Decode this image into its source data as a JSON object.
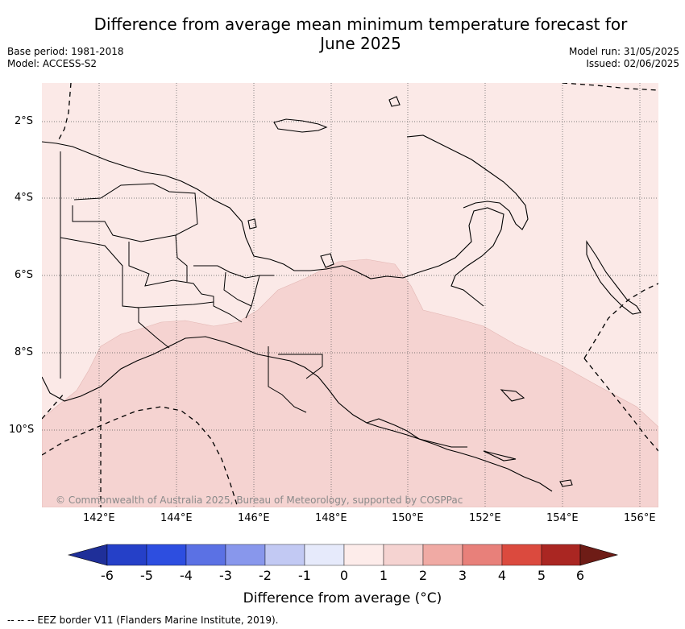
{
  "header": {
    "title_line1": "Difference from average mean minimum temperature forecast for",
    "title_line2": "June 2025",
    "base_period": "Base period: 1981-2018",
    "model": "Model: ACCESS-S2",
    "model_run": "Model run: 31/05/2025",
    "issued": "Issued: 02/06/2025"
  },
  "map": {
    "lat_labels": [
      "2°S",
      "4°S",
      "6°S",
      "8°S",
      "10°S"
    ],
    "lon_labels": [
      "142°E",
      "144°E",
      "146°E",
      "148°E",
      "150°E",
      "152°E",
      "154°E",
      "156°E"
    ],
    "copyright": "© Commonwealth of Australia 2025, Bureau of Meteorology, supported by COSPPac",
    "region_colors": {
      "light": "#fbe9e7",
      "medium": "#f5d3d1"
    }
  },
  "colorbar": {
    "label": "Difference from average (°C)",
    "ticks": [
      "-6",
      "-5",
      "-4",
      "-3",
      "-2",
      "-1",
      "0",
      "1",
      "2",
      "3",
      "4",
      "5",
      "6"
    ],
    "colors": [
      "#1f2f99",
      "#2540c8",
      "#2d4ee0",
      "#5b71e4",
      "#8897ec",
      "#c2c9f3",
      "#e6eafb",
      "#fdecea",
      "#f5d3d1",
      "#f0aaa4",
      "#e8807a",
      "#db4a3e",
      "#aa2622",
      "#6e1c16"
    ]
  },
  "footer": {
    "legend_text": "--  --  -- EEZ border V11 (Flanders Marine Institute, 2019)."
  }
}
